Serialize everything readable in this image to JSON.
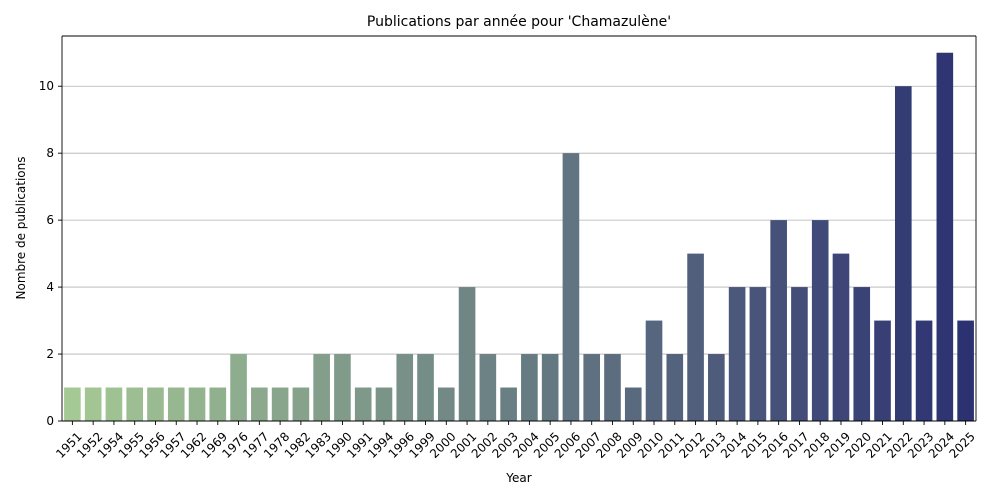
{
  "chart_data": {
    "type": "bar",
    "title": "Publications par année pour 'Chamazulène'",
    "xlabel": "Year",
    "ylabel": "Nombre de publications",
    "categories": [
      "1951",
      "1952",
      "1954",
      "1955",
      "1956",
      "1957",
      "1962",
      "1969",
      "1976",
      "1977",
      "1978",
      "1982",
      "1983",
      "1990",
      "1991",
      "1994",
      "1996",
      "1999",
      "2000",
      "2001",
      "2002",
      "2003",
      "2004",
      "2005",
      "2006",
      "2007",
      "2008",
      "2009",
      "2010",
      "2011",
      "2012",
      "2013",
      "2014",
      "2015",
      "2016",
      "2017",
      "2018",
      "2019",
      "2020",
      "2021",
      "2022",
      "2023",
      "2024",
      "2025"
    ],
    "values": [
      1,
      1,
      1,
      1,
      1,
      1,
      1,
      1,
      2,
      1,
      1,
      1,
      2,
      2,
      1,
      1,
      2,
      2,
      1,
      4,
      2,
      1,
      2,
      2,
      8,
      2,
      2,
      1,
      3,
      2,
      5,
      2,
      4,
      4,
      6,
      4,
      6,
      5,
      4,
      3,
      10,
      3,
      11,
      3
    ],
    "ylim": [
      0,
      11.5
    ],
    "yticks": [
      0,
      2,
      4,
      6,
      8,
      10
    ],
    "grid": "y",
    "palette": "crest",
    "color_start": "#a5c994",
    "color_end": "#2c3172"
  }
}
